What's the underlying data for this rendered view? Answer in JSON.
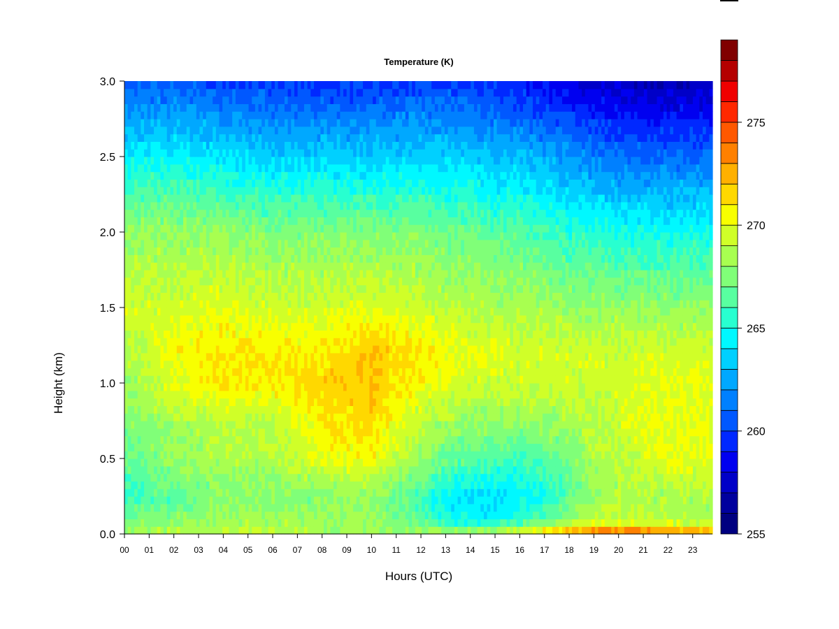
{
  "chart_data": {
    "type": "heatmap",
    "title": "Temperature (K)",
    "xlabel": "Hours (UTC)",
    "ylabel": "Height (km)",
    "x_ticks": [
      "00",
      "01",
      "02",
      "03",
      "04",
      "05",
      "06",
      "07",
      "08",
      "09",
      "10",
      "11",
      "12",
      "13",
      "14",
      "15",
      "16",
      "17",
      "18",
      "19",
      "20",
      "21",
      "22",
      "23"
    ],
    "y_ticks": [
      "0.0",
      "0.5",
      "1.0",
      "1.5",
      "2.0",
      "2.5",
      "3.0"
    ],
    "xlim": [
      0,
      23.8
    ],
    "ylim": [
      0,
      3.0
    ],
    "colorbar": {
      "min": 255,
      "max": 277,
      "step": 1,
      "tick_values": [
        255,
        260,
        265,
        270,
        275
      ],
      "tick_labels": [
        "255",
        "260",
        "265",
        "270",
        "275"
      ],
      "colors": [
        "#000080",
        "#00009e",
        "#0000c8",
        "#0000f0",
        "#0028ff",
        "#0058ff",
        "#0080ff",
        "#00a8ff",
        "#00d0ff",
        "#00f8ff",
        "#28ffd0",
        "#58ffa0",
        "#80ff78",
        "#a8ff50",
        "#d0ff28",
        "#f8ff00",
        "#ffd800",
        "#ffb000",
        "#ff8000",
        "#ff5800",
        "#ff2800",
        "#f00000",
        "#b40000",
        "#800000"
      ]
    },
    "z_units": "K",
    "x_hours": [
      0,
      2,
      4,
      6,
      8,
      10,
      12,
      13,
      14,
      15,
      16,
      17,
      18,
      19,
      20,
      21,
      22,
      23.8
    ],
    "y_km": [
      0.0,
      0.02,
      0.05,
      0.1,
      0.25,
      0.5,
      0.75,
      1.0,
      1.2,
      1.5,
      2.0,
      2.5,
      3.0
    ],
    "z_kelvin": [
      [
        271.5,
        268.5,
        268.0,
        267.0,
        266.0,
        266.5,
        267.5,
        268.0,
        268.5,
        269.5,
        268.0,
        264.5,
        260.5
      ],
      [
        272.0,
        268.5,
        268.0,
        267.5,
        266.5,
        268.0,
        268.5,
        270.0,
        270.5,
        269.5,
        268.0,
        264.5,
        260.5
      ],
      [
        271.5,
        269.0,
        268.5,
        268.5,
        267.5,
        268.5,
        269.0,
        271.0,
        271.0,
        270.0,
        268.0,
        264.0,
        260.0
      ],
      [
        271.5,
        269.0,
        268.5,
        268.5,
        267.5,
        268.5,
        269.0,
        271.0,
        271.0,
        269.5,
        267.5,
        263.5,
        260.0
      ],
      [
        271.0,
        268.5,
        268.5,
        268.0,
        267.5,
        270.0,
        271.0,
        271.5,
        271.0,
        269.5,
        267.5,
        263.5,
        259.5
      ],
      [
        271.0,
        268.5,
        268.5,
        268.0,
        268.0,
        270.5,
        271.5,
        272.0,
        272.0,
        270.0,
        267.5,
        263.5,
        259.5
      ],
      [
        270.5,
        268.0,
        267.5,
        266.5,
        266.0,
        268.0,
        269.0,
        270.5,
        271.0,
        269.5,
        267.5,
        263.5,
        260.0
      ],
      [
        270.5,
        268.0,
        266.5,
        265.0,
        264.5,
        267.0,
        268.5,
        270.0,
        270.5,
        269.0,
        267.0,
        263.5,
        260.0
      ],
      [
        271.0,
        268.0,
        266.0,
        264.5,
        264.0,
        266.5,
        268.0,
        269.5,
        270.0,
        269.0,
        267.0,
        263.5,
        259.5
      ],
      [
        271.5,
        268.5,
        266.5,
        264.5,
        264.0,
        266.0,
        268.0,
        269.5,
        270.0,
        268.5,
        266.5,
        263.0,
        259.5
      ],
      [
        272.0,
        269.5,
        267.0,
        265.5,
        264.5,
        266.0,
        268.0,
        269.5,
        269.5,
        268.5,
        266.5,
        263.0,
        259.0
      ],
      [
        273.5,
        271.0,
        268.5,
        266.5,
        265.0,
        266.5,
        268.0,
        269.5,
        269.5,
        268.5,
        266.0,
        262.5,
        258.5
      ],
      [
        274.5,
        272.5,
        270.0,
        268.0,
        266.5,
        267.5,
        268.5,
        269.5,
        269.5,
        268.0,
        265.5,
        262.0,
        258.0
      ],
      [
        275.5,
        273.0,
        271.0,
        269.0,
        268.0,
        268.5,
        269.0,
        269.5,
        269.5,
        268.0,
        265.5,
        261.5,
        257.5
      ],
      [
        276.0,
        273.5,
        271.0,
        269.0,
        268.5,
        269.0,
        269.5,
        269.5,
        269.5,
        268.0,
        265.0,
        261.0,
        257.5
      ],
      [
        276.0,
        273.5,
        270.5,
        269.0,
        268.5,
        269.5,
        270.0,
        270.0,
        269.5,
        268.0,
        265.0,
        261.0,
        257.0
      ],
      [
        275.5,
        273.0,
        270.5,
        268.5,
        268.5,
        270.0,
        270.0,
        270.0,
        269.5,
        268.0,
        265.0,
        261.0,
        257.0
      ],
      [
        275.0,
        272.5,
        270.0,
        268.5,
        268.5,
        270.0,
        270.0,
        270.0,
        269.5,
        268.0,
        265.0,
        261.0,
        257.0
      ]
    ]
  }
}
